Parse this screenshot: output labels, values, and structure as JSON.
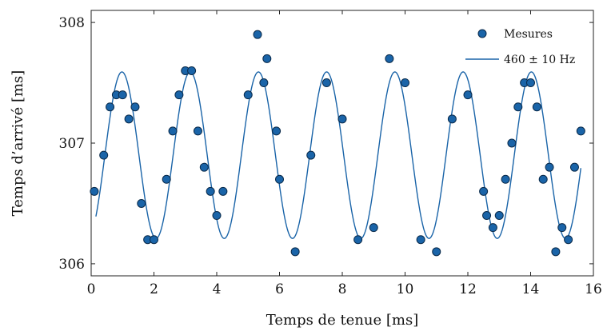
{
  "chart_data": {
    "type": "scatter",
    "xlabel": "Temps de tenue [ms]",
    "ylabel": "Temps d’arrivé [ms]",
    "xlim": [
      0,
      16
    ],
    "ylim": [
      305.9,
      308.1
    ],
    "x_ticks": [
      0,
      2,
      4,
      6,
      8,
      10,
      12,
      14,
      16
    ],
    "y_ticks": [
      306,
      307,
      308
    ],
    "grid": false,
    "legend_position": "top-right",
    "colors": {
      "marker_fill": "#1a64a8",
      "marker_edge": "#0a2a4a",
      "line": "#1a64a8"
    },
    "series": [
      {
        "name": "Mesures",
        "type": "scatter",
        "x": [
          0.1,
          0.4,
          0.6,
          0.8,
          1.0,
          1.2,
          1.4,
          1.6,
          1.8,
          2.0,
          2.4,
          2.6,
          2.8,
          3.0,
          3.2,
          3.4,
          3.6,
          3.8,
          4.0,
          4.2,
          5.0,
          5.3,
          5.5,
          5.6,
          5.9,
          6.0,
          6.5,
          7.0,
          7.5,
          8.0,
          8.5,
          9.0,
          9.5,
          10.0,
          10.5,
          11.0,
          11.5,
          12.0,
          12.5,
          12.6,
          12.8,
          13.0,
          13.2,
          13.4,
          13.6,
          13.8,
          14.0,
          14.2,
          14.4,
          14.6,
          14.8,
          15.0,
          15.2,
          15.4,
          15.6
        ],
        "y": [
          306.6,
          306.9,
          307.3,
          307.4,
          307.4,
          307.2,
          307.3,
          306.5,
          306.2,
          306.2,
          306.7,
          307.1,
          307.4,
          307.6,
          307.6,
          307.1,
          306.8,
          306.6,
          306.4,
          306.6,
          307.4,
          307.9,
          307.5,
          307.7,
          307.1,
          306.7,
          306.1,
          306.9,
          307.5,
          307.2,
          306.2,
          306.3,
          307.7,
          307.5,
          306.2,
          306.1,
          307.2,
          307.4,
          306.6,
          306.4,
          306.3,
          306.4,
          306.7,
          307.0,
          307.3,
          307.5,
          307.5,
          307.3,
          306.7,
          306.8,
          306.1,
          306.3,
          306.2,
          306.8,
          307.1
        ]
      },
      {
        "name": "460 ± 10 Hz",
        "type": "line",
        "model": {
          "kind": "sine",
          "frequency_hz": 460,
          "offset_ms": 306.9,
          "amplitude_ms": 0.69,
          "peak_at_ms": 0.98,
          "x_start": 0.15,
          "x_end": 15.6
        }
      }
    ]
  }
}
